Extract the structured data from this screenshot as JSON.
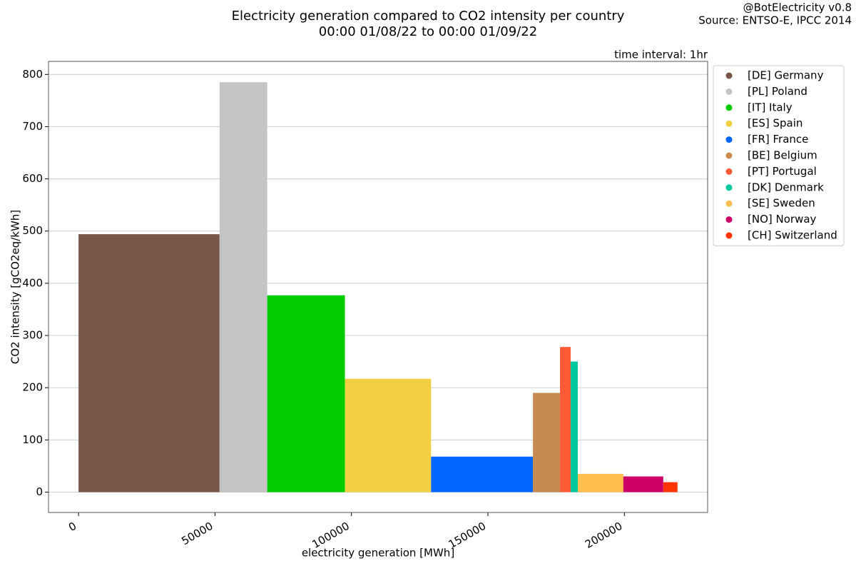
{
  "chart_data": {
    "type": "variable-width-bar",
    "title": "Electricity generation compared to CO2 intensity per country",
    "subtitle": "00:00 01/08/22 to 00:00 01/09/22",
    "credit": "@BotElectricity v0.8",
    "source": "Source: ENTSO-E, IPCC 2014",
    "annotation": "time interval: 1hr",
    "x_label": "electricity generation [MWh]",
    "y_label": "CO2 intensity [gCO2eq/kWh]",
    "categories": [
      "[DE] Germany",
      "[PL] Poland",
      "[IT] Italy",
      "[ES] Spain",
      "[FR] France",
      "[BE] Belgium",
      "[PT] Portugal",
      "[DK] Denmark",
      "[SE] Sweden",
      "[NO] Norway",
      "[CH] Switzerland"
    ],
    "values": [
      494,
      785,
      377,
      217,
      68,
      190,
      278,
      250,
      35,
      30,
      19
    ],
    "widths": [
      51670,
      17480,
      28440,
      31580,
      37320,
      9920,
      3910,
      2610,
      16700,
      14610,
      5220
    ],
    "colors": [
      "#7a5646",
      "#c4c4c4",
      "#00cc00",
      "#f2cf40",
      "#0066ff",
      "#c78b52",
      "#ff5a36",
      "#00c8a0",
      "#ffbe4d",
      "#cc0066",
      "#ff3300"
    ],
    "xlim": [
      -11000,
      230500
    ],
    "ylim": [
      -39,
      825
    ],
    "xticks": [
      0,
      50000,
      100000,
      150000,
      200000
    ],
    "yticks": [
      0,
      100,
      200,
      300,
      400,
      500,
      600,
      700,
      800
    ],
    "grid": true,
    "legend": "outside-upper-right"
  }
}
